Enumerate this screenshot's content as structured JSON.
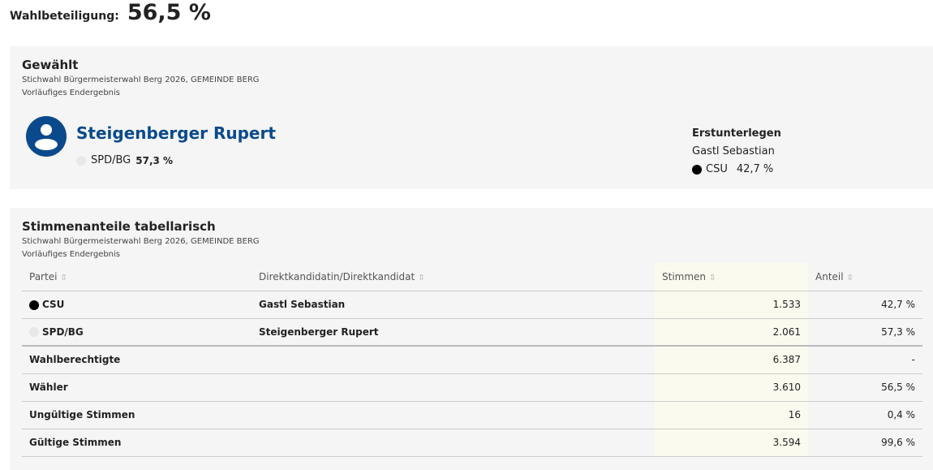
{
  "turnout": {
    "label": "Wahlbeteiligung:",
    "value": "56,5 %"
  },
  "elected": {
    "title": "Gewählt",
    "subtitle": "Stichwahl Bürgermeisterwahl Berg 2026, GEMEINDE BERG",
    "status": "Vorläufiges Endergebnis",
    "winner": {
      "name": "Steigenberger Rupert",
      "party": "SPD/BG",
      "share": "57,3 %",
      "color": "#e8e8e8"
    },
    "runner_up": {
      "label": "Erstunterlegen",
      "name": "Gastl Sebastian",
      "party": "CSU",
      "share": "42,7 %",
      "color": "#000000"
    }
  },
  "table": {
    "title": "Stimmenanteile tabellarisch",
    "subtitle": "Stichwahl Bürgermeisterwahl Berg 2026, GEMEINDE BERG",
    "status": "Vorläufiges Endergebnis",
    "headers": [
      "Partei",
      "Direktkandidatin/Direktkandidat",
      "Stimmen",
      "Anteil"
    ],
    "rows": [
      {
        "party": "CSU",
        "color": "#000000",
        "candidate": "Gastl Sebastian",
        "votes": "1.533",
        "share": "42,7 %"
      },
      {
        "party": "SPD/BG",
        "color": "#e8e8e8",
        "candidate": "Steigenberger Rupert",
        "votes": "2.061",
        "share": "57,3 %"
      }
    ],
    "summary": [
      {
        "label": "Wahlberechtigte",
        "votes": "6.387",
        "share": "-"
      },
      {
        "label": "Wähler",
        "votes": "3.610",
        "share": "56,5 %"
      },
      {
        "label": "Ungültige Stimmen",
        "votes": "16",
        "share": "0,4 %"
      },
      {
        "label": "Gültige Stimmen",
        "votes": "3.594",
        "share": "99,6 %"
      }
    ]
  }
}
